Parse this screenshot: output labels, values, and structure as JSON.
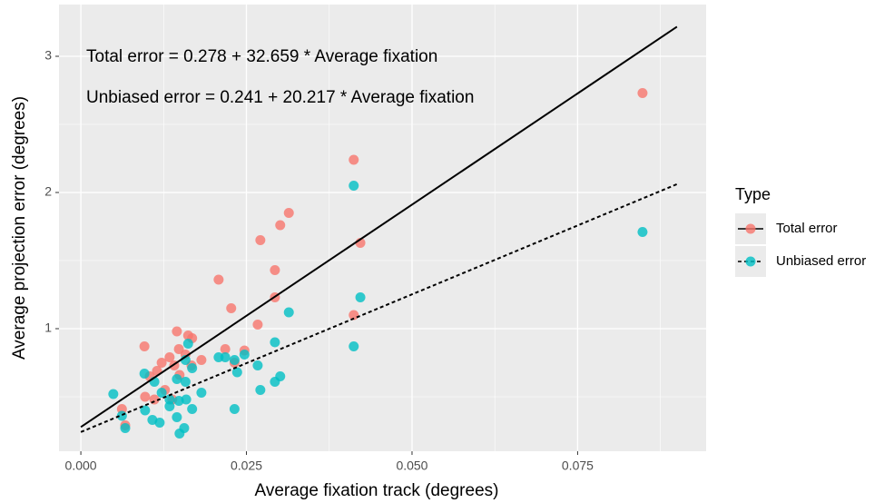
{
  "chart_data": {
    "type": "scatter",
    "x_label": "Average fixation track (degrees)",
    "y_label": "Average projection error (degrees)",
    "annotations": [
      "Total error = 0.278 + 32.659 * Average fixation",
      "Unbiased error = 0.241 + 20.217 * Average fixation"
    ],
    "legend_title": "Type",
    "legend_position": "right",
    "grid": true,
    "xlim": [
      -0.0033,
      0.0944
    ],
    "ylim": [
      0.1,
      3.38
    ],
    "xticks": [
      {
        "value": 0,
        "label": "0.000"
      },
      {
        "value": 0.025,
        "label": "0.025"
      },
      {
        "value": 0.05,
        "label": "0.050"
      },
      {
        "value": 0.075,
        "label": "0.075"
      }
    ],
    "yticks": [
      1,
      2,
      3
    ],
    "x_minor_grid": [
      0.0125,
      0.0375,
      0.0625,
      0.0875
    ],
    "y_minor_grid": [
      0.5,
      1.5,
      2.5
    ],
    "series": [
      {
        "name": "Total error",
        "color": "#F8766D",
        "x": [
          0.0848,
          0.0412,
          0.0422,
          0.0314,
          0.0301,
          0.0271,
          0.0293,
          0.0208,
          0.0293,
          0.0227,
          0.0267,
          0.0412,
          0.0145,
          0.0162,
          0.0096,
          0.0168,
          0.0218,
          0.0247,
          0.0148,
          0.0158,
          0.0134,
          0.0182,
          0.0122,
          0.0141,
          0.0115,
          0.0167,
          0.0232,
          0.0104,
          0.0149,
          0.0127,
          0.0097,
          0.0111,
          0.0062,
          0.0067,
          0.0138
        ],
        "values": [
          2.73,
          2.24,
          1.63,
          1.85,
          1.76,
          1.65,
          1.43,
          1.36,
          1.23,
          1.15,
          1.03,
          1.1,
          0.98,
          0.95,
          0.87,
          0.93,
          0.85,
          0.84,
          0.85,
          0.81,
          0.79,
          0.77,
          0.75,
          0.73,
          0.69,
          0.73,
          0.75,
          0.65,
          0.66,
          0.55,
          0.5,
          0.48,
          0.41,
          0.29,
          0.48
        ],
        "fit": {
          "x": [
            0,
            0.09
          ],
          "values": [
            0.278,
            3.217
          ],
          "linetype": "solid",
          "color": "#000000"
        }
      },
      {
        "name": "Unbiased error",
        "color": "#00BFC4",
        "x": [
          0.0848,
          0.0412,
          0.0422,
          0.0314,
          0.0293,
          0.0412,
          0.0208,
          0.0218,
          0.0247,
          0.0162,
          0.0158,
          0.0168,
          0.0232,
          0.0236,
          0.0267,
          0.0096,
          0.0111,
          0.0145,
          0.0158,
          0.0301,
          0.0293,
          0.0271,
          0.0182,
          0.0122,
          0.0134,
          0.0049,
          0.0159,
          0.0148,
          0.0134,
          0.0097,
          0.0168,
          0.0232,
          0.0062,
          0.0108,
          0.0119,
          0.0145,
          0.0156,
          0.0149,
          0.0067
        ],
        "values": [
          1.71,
          2.05,
          1.23,
          1.12,
          0.9,
          0.87,
          0.79,
          0.79,
          0.81,
          0.89,
          0.77,
          0.71,
          0.77,
          0.68,
          0.73,
          0.67,
          0.61,
          0.63,
          0.61,
          0.65,
          0.61,
          0.55,
          0.53,
          0.53,
          0.48,
          0.52,
          0.48,
          0.47,
          0.43,
          0.4,
          0.41,
          0.41,
          0.36,
          0.33,
          0.31,
          0.35,
          0.27,
          0.23,
          0.27
        ],
        "fit": {
          "x": [
            0,
            0.09
          ],
          "values": [
            0.241,
            2.061
          ],
          "linetype": "dashed",
          "color": "#000000"
        }
      }
    ]
  }
}
